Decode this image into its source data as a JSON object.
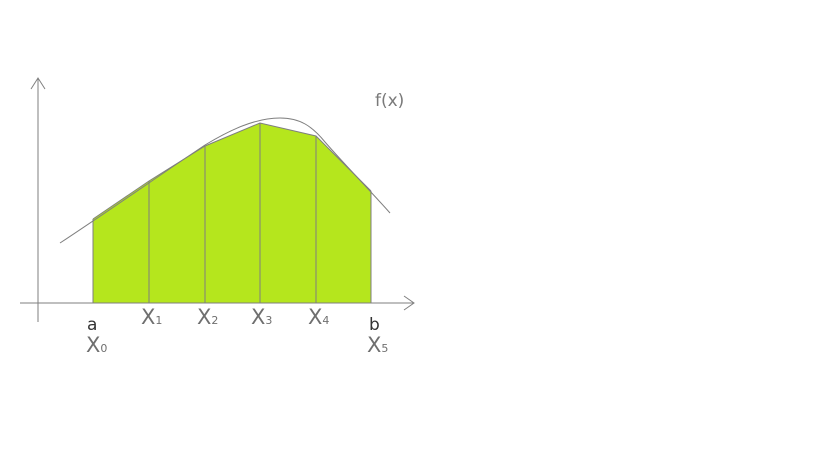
{
  "diagram": {
    "function_label": "f(x)",
    "bound_a": "a",
    "bound_b": "b",
    "fill_color": "#b5e61d",
    "line_color": "#7f7f7f",
    "nodes": [
      {
        "main": "X",
        "sub": "0"
      },
      {
        "main": "X",
        "sub": "1"
      },
      {
        "main": "X",
        "sub": "2"
      },
      {
        "main": "X",
        "sub": "3"
      },
      {
        "main": "X",
        "sub": "4"
      },
      {
        "main": "X",
        "sub": "5"
      }
    ]
  }
}
